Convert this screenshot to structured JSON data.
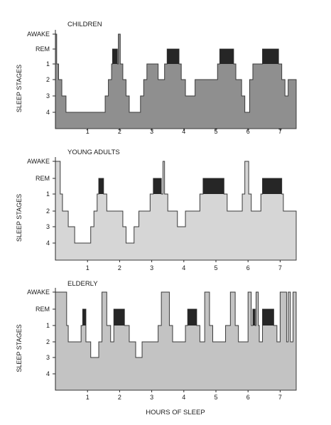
{
  "chart_data": {
    "type": "area",
    "xlabel": "HOURS OF SLEEP",
    "ylabel": "SLEEP STAGES",
    "x_ticks": [
      1,
      2,
      3,
      4,
      5,
      6,
      7
    ],
    "xlim": [
      0,
      7.5
    ],
    "y_categories": [
      "AWAKE",
      "REM",
      "1",
      "2",
      "3",
      "4"
    ],
    "fill_colors": [
      "#8f8f8f",
      "#d6d6d6",
      "#c3c3c3"
    ],
    "rem_color": "#262626",
    "panels": [
      {
        "title": "CHILDREN",
        "hypnogram": [
          [
            0,
            "AWAKE"
          ],
          [
            0.04,
            "1"
          ],
          [
            0.1,
            "2"
          ],
          [
            0.2,
            "3"
          ],
          [
            0.33,
            "4"
          ],
          [
            1.55,
            "3"
          ],
          [
            1.65,
            "2"
          ],
          [
            1.75,
            "1"
          ],
          [
            1.78,
            "REM"
          ],
          [
            1.93,
            "1"
          ],
          [
            1.96,
            "AWAKE"
          ],
          [
            2.02,
            "1"
          ],
          [
            2.1,
            "2"
          ],
          [
            2.2,
            "3"
          ],
          [
            2.3,
            "4"
          ],
          [
            2.65,
            "3"
          ],
          [
            2.75,
            "2"
          ],
          [
            2.85,
            "1"
          ],
          [
            3.2,
            "2"
          ],
          [
            3.4,
            "1"
          ],
          [
            3.48,
            "REM"
          ],
          [
            3.85,
            "1"
          ],
          [
            3.92,
            "2"
          ],
          [
            4.05,
            "3"
          ],
          [
            4.35,
            "2"
          ],
          [
            5.05,
            "1"
          ],
          [
            5.12,
            "REM"
          ],
          [
            5.55,
            "1"
          ],
          [
            5.62,
            "2"
          ],
          [
            5.8,
            "3"
          ],
          [
            5.9,
            "4"
          ],
          [
            6.05,
            "2"
          ],
          [
            6.15,
            "1"
          ],
          [
            6.45,
            "REM"
          ],
          [
            6.95,
            "1"
          ],
          [
            7.05,
            "2"
          ],
          [
            7.15,
            "3"
          ],
          [
            7.25,
            "2"
          ],
          [
            7.5,
            "2"
          ]
        ]
      },
      {
        "title": "YOUNG ADULTS",
        "hypnogram": [
          [
            0,
            "AWAKE"
          ],
          [
            0.15,
            "1"
          ],
          [
            0.22,
            "2"
          ],
          [
            0.4,
            "3"
          ],
          [
            0.6,
            "4"
          ],
          [
            1.1,
            "3"
          ],
          [
            1.2,
            "2"
          ],
          [
            1.3,
            "1"
          ],
          [
            1.35,
            "REM"
          ],
          [
            1.5,
            "1"
          ],
          [
            1.6,
            "2"
          ],
          [
            2.1,
            "3"
          ],
          [
            2.2,
            "4"
          ],
          [
            2.45,
            "3"
          ],
          [
            2.6,
            "2"
          ],
          [
            2.95,
            "1"
          ],
          [
            3.05,
            "REM"
          ],
          [
            3.3,
            "1"
          ],
          [
            3.35,
            "AWAKE"
          ],
          [
            3.4,
            "1"
          ],
          [
            3.5,
            "2"
          ],
          [
            3.8,
            "3"
          ],
          [
            4.05,
            "2"
          ],
          [
            4.5,
            "1"
          ],
          [
            4.6,
            "REM"
          ],
          [
            5.25,
            "1"
          ],
          [
            5.35,
            "2"
          ],
          [
            5.82,
            "1"
          ],
          [
            5.9,
            "AWAKE"
          ],
          [
            6.02,
            "1"
          ],
          [
            6.1,
            "2"
          ],
          [
            6.4,
            "1"
          ],
          [
            6.45,
            "REM"
          ],
          [
            7.05,
            "1"
          ],
          [
            7.1,
            "2"
          ],
          [
            7.5,
            "2"
          ]
        ]
      },
      {
        "title": "ELDERLY",
        "hypnogram": [
          [
            0,
            "AWAKE"
          ],
          [
            0.35,
            "1"
          ],
          [
            0.4,
            "2"
          ],
          [
            0.8,
            "1"
          ],
          [
            0.85,
            "REM"
          ],
          [
            0.95,
            "2"
          ],
          [
            1.1,
            "3"
          ],
          [
            1.35,
            "2"
          ],
          [
            1.45,
            "AWAKE"
          ],
          [
            1.6,
            "1"
          ],
          [
            1.72,
            "2"
          ],
          [
            1.82,
            "REM"
          ],
          [
            2.15,
            "1"
          ],
          [
            2.3,
            "2"
          ],
          [
            2.5,
            "3"
          ],
          [
            2.7,
            "2"
          ],
          [
            3.2,
            "1"
          ],
          [
            3.3,
            "AWAKE"
          ],
          [
            3.55,
            "1"
          ],
          [
            3.65,
            "2"
          ],
          [
            4.05,
            "1"
          ],
          [
            4.12,
            "REM"
          ],
          [
            4.4,
            "1"
          ],
          [
            4.5,
            "2"
          ],
          [
            4.65,
            "AWAKE"
          ],
          [
            4.8,
            "1"
          ],
          [
            4.9,
            "2"
          ],
          [
            5.3,
            "1"
          ],
          [
            5.45,
            "AWAKE"
          ],
          [
            5.6,
            "1"
          ],
          [
            5.7,
            "2"
          ],
          [
            6.0,
            "AWAKE"
          ],
          [
            6.1,
            "1"
          ],
          [
            6.15,
            "REM"
          ],
          [
            6.22,
            "1"
          ],
          [
            6.25,
            "AWAKE"
          ],
          [
            6.32,
            "1"
          ],
          [
            6.35,
            "2"
          ],
          [
            6.45,
            "REM"
          ],
          [
            6.8,
            "1"
          ],
          [
            6.9,
            "2"
          ],
          [
            7.0,
            "AWAKE"
          ],
          [
            7.2,
            "2"
          ],
          [
            7.25,
            "AWAKE"
          ],
          [
            7.32,
            "2"
          ],
          [
            7.4,
            "AWAKE"
          ],
          [
            7.5,
            "AWAKE"
          ]
        ]
      }
    ]
  }
}
